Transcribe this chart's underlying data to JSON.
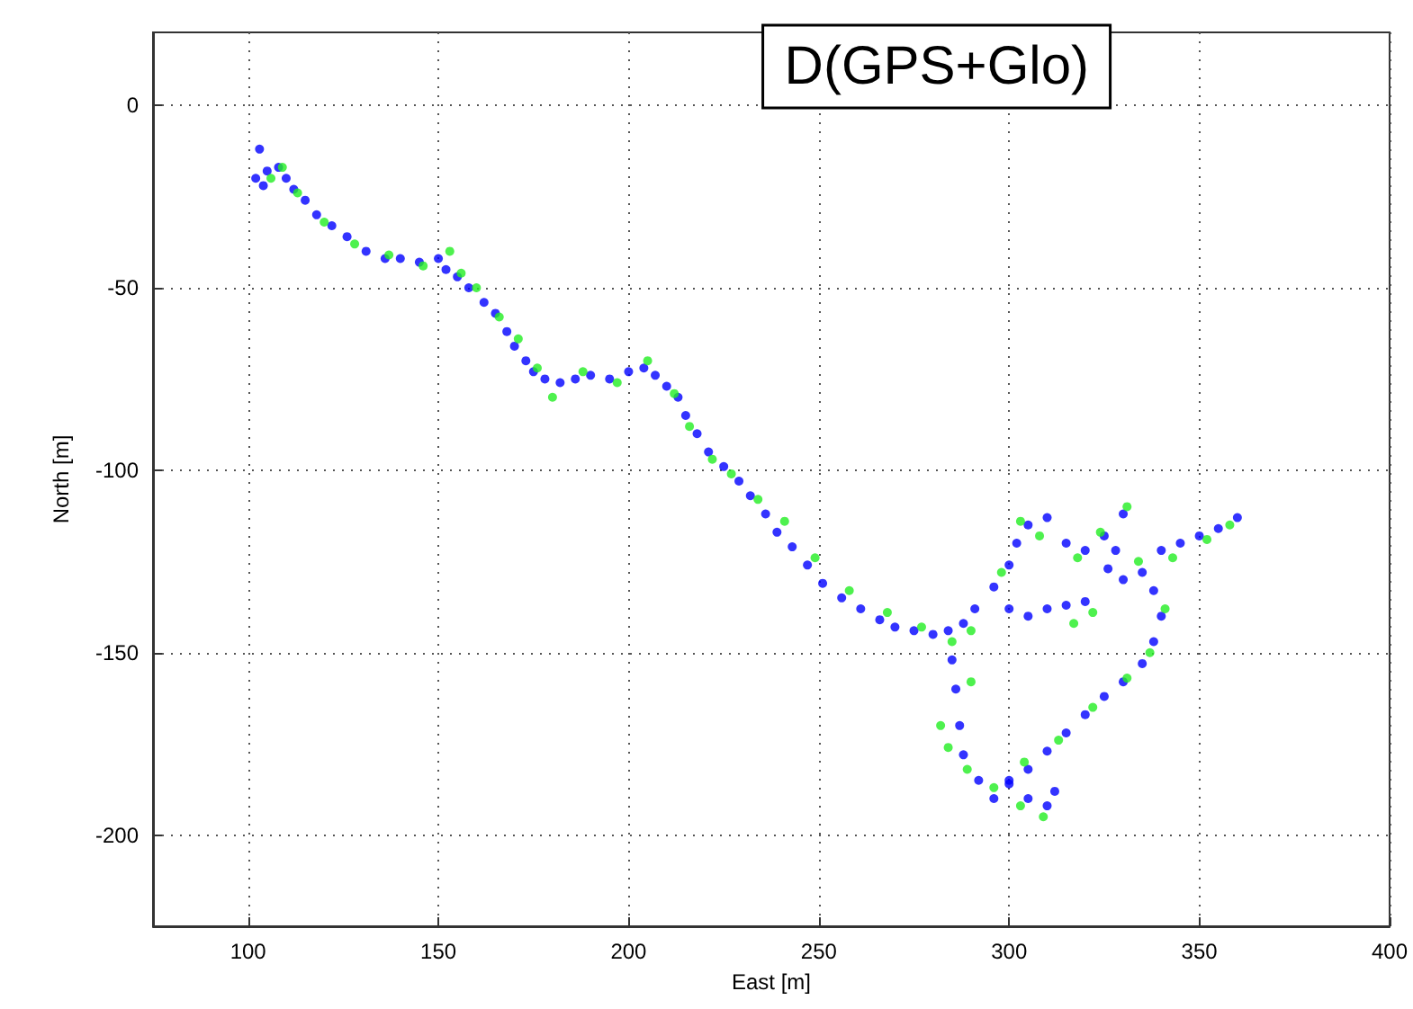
{
  "chart_data": {
    "type": "scatter",
    "title": "D(GPS+Glo)",
    "xlabel": "East [m]",
    "ylabel": "North [m]",
    "xlim": [
      75,
      400
    ],
    "xticks": [
      100,
      150,
      200,
      250,
      300,
      350,
      400
    ],
    "ylim": [
      -225,
      20
    ],
    "yticks": [
      -200,
      -150,
      -100,
      -50,
      0
    ],
    "grid": true,
    "marker": "circle",
    "series": [
      {
        "color": "#0000ff",
        "x": [
          103,
          102,
          104,
          105,
          108,
          110,
          112,
          115,
          118,
          122,
          126,
          131,
          136,
          140,
          145,
          150,
          152,
          155,
          158,
          162,
          165,
          168,
          170,
          173,
          175,
          178,
          182,
          186,
          190,
          195,
          200,
          204,
          207,
          210,
          213,
          215,
          218,
          221,
          225,
          229,
          232,
          236,
          239,
          243,
          247,
          251,
          256,
          261,
          266,
          270,
          275,
          280,
          284,
          288,
          291,
          296,
          300,
          302,
          305,
          310,
          315,
          320,
          325,
          330,
          328,
          326,
          330,
          335,
          338,
          340,
          338,
          335,
          330,
          325,
          320,
          315,
          310,
          305,
          300,
          296,
          292,
          288,
          287,
          286,
          285,
          300,
          305,
          310,
          312,
          300,
          305,
          310,
          315,
          320,
          340,
          345,
          350,
          355,
          360
        ],
        "values": [
          -12,
          -20,
          -22,
          -18,
          -17,
          -20,
          -23,
          -26,
          -30,
          -33,
          -36,
          -40,
          -42,
          -42,
          -43,
          -42,
          -45,
          -47,
          -50,
          -54,
          -57,
          -62,
          -66,
          -70,
          -73,
          -75,
          -76,
          -75,
          -74,
          -75,
          -73,
          -72,
          -74,
          -77,
          -80,
          -85,
          -90,
          -95,
          -99,
          -103,
          -107,
          -112,
          -117,
          -121,
          -126,
          -131,
          -135,
          -138,
          -141,
          -143,
          -144,
          -145,
          -144,
          -142,
          -138,
          -132,
          -126,
          -120,
          -115,
          -113,
          -120,
          -122,
          -118,
          -112,
          -122,
          -127,
          -130,
          -128,
          -133,
          -140,
          -147,
          -153,
          -158,
          -162,
          -167,
          -172,
          -177,
          -182,
          -186,
          -190,
          -185,
          -178,
          -170,
          -160,
          -152,
          -185,
          -190,
          -192,
          -188,
          -138,
          -140,
          -138,
          -137,
          -136,
          -122,
          -120,
          -118,
          -116,
          -113
        ]
      },
      {
        "color": "#22ee22",
        "x": [
          106,
          109,
          113,
          120,
          128,
          137,
          146,
          153,
          156,
          160,
          166,
          171,
          176,
          180,
          188,
          197,
          205,
          212,
          216,
          222,
          227,
          234,
          241,
          249,
          258,
          268,
          277,
          285,
          290,
          298,
          303,
          308,
          318,
          324,
          331,
          334,
          341,
          337,
          331,
          322,
          313,
          304,
          296,
          289,
          284,
          282,
          290,
          303,
          309,
          317,
          322,
          343,
          352,
          358
        ],
        "values": [
          -20,
          -17,
          -24,
          -32,
          -38,
          -41,
          -44,
          -40,
          -46,
          -50,
          -58,
          -64,
          -72,
          -80,
          -73,
          -76,
          -70,
          -79,
          -88,
          -97,
          -101,
          -108,
          -114,
          -124,
          -133,
          -139,
          -143,
          -147,
          -144,
          -128,
          -114,
          -118,
          -124,
          -117,
          -110,
          -125,
          -138,
          -150,
          -157,
          -165,
          -174,
          -180,
          -187,
          -182,
          -176,
          -170,
          -158,
          -192,
          -195,
          -142,
          -139,
          -124,
          -119,
          -115
        ]
      }
    ]
  }
}
